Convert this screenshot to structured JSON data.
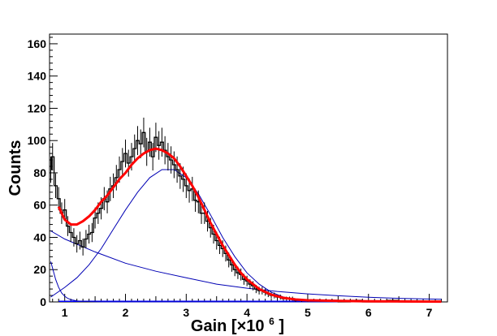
{
  "chart_data": {
    "type": "line",
    "xlabel": "Gain [×10",
    "xlabel_exponent": "6",
    "xlabel_suffix": "]",
    "ylabel": "Counts",
    "xlim": [
      0.75,
      7.3
    ],
    "ylim": [
      0,
      166
    ],
    "xticks": [
      1,
      2,
      3,
      4,
      5,
      6,
      7
    ],
    "yticks": [
      0,
      20,
      40,
      60,
      80,
      100,
      120,
      140,
      160
    ],
    "grid": false,
    "colors": {
      "data": "#000000",
      "total_fit": "#ff0000",
      "components": "#0000b4",
      "baseline": "#0000ff"
    },
    "series": [
      {
        "values_desc": "histogram",
        "x": [
          0.77,
          0.8,
          0.85,
          0.9,
          0.95,
          1.0,
          1.05,
          1.1,
          1.15,
          1.2,
          1.25,
          1.3,
          1.35,
          1.4,
          1.45,
          1.5,
          1.55,
          1.6,
          1.65,
          1.7,
          1.75,
          1.8,
          1.85,
          1.9,
          1.95,
          2.0,
          2.05,
          2.1,
          2.15,
          2.2,
          2.25,
          2.3,
          2.35,
          2.4,
          2.45,
          2.5,
          2.55,
          2.6,
          2.65,
          2.7,
          2.75,
          2.8,
          2.85,
          2.9,
          2.95,
          3.0,
          3.05,
          3.1,
          3.15,
          3.2,
          3.25,
          3.3,
          3.35,
          3.4,
          3.45,
          3.5,
          3.55,
          3.6,
          3.65,
          3.7,
          3.75,
          3.8,
          3.85,
          3.9,
          3.95,
          4.0,
          4.05,
          4.1,
          4.15,
          4.2,
          4.25,
          4.3,
          4.35,
          4.4,
          4.45,
          4.5,
          4.55,
          4.6,
          4.65,
          4.7,
          4.75,
          4.8,
          4.9,
          5.0,
          5.2,
          5.4,
          5.6,
          5.8,
          6.0,
          6.2,
          6.4,
          6.6,
          6.8,
          7.0,
          7.2
        ],
        "y": [
          82,
          90,
          72,
          64,
          55,
          57,
          47,
          43,
          40,
          36,
          38,
          34,
          39,
          42,
          43,
          52,
          55,
          58,
          64,
          62,
          70,
          72,
          77,
          82,
          87,
          92,
          86,
          90,
          95,
          100,
          98,
          105,
          93,
          99,
          90,
          102,
          97,
          99,
          94,
          90,
          88,
          85,
          82,
          78,
          76,
          72,
          69,
          70,
          63,
          62,
          55,
          55,
          50,
          46,
          42,
          38,
          35,
          33,
          30,
          26,
          23,
          20,
          18,
          17,
          14,
          13,
          11,
          10,
          8,
          7,
          7,
          6,
          5,
          4,
          4,
          3,
          3,
          2,
          2,
          2,
          2,
          1,
          1,
          1,
          1,
          1,
          0,
          1,
          0,
          0,
          1,
          0,
          0,
          0,
          0
        ]
      },
      {
        "values_desc": "total fit",
        "x": [
          0.9,
          1.0,
          1.1,
          1.2,
          1.3,
          1.4,
          1.5,
          1.6,
          1.7,
          1.8,
          1.9,
          2.0,
          2.1,
          2.2,
          2.3,
          2.4,
          2.5,
          2.6,
          2.7,
          2.8,
          2.9,
          3.0,
          3.1,
          3.2,
          3.3,
          3.4,
          3.5,
          3.6,
          3.7,
          3.8,
          3.9,
          4.0,
          4.2,
          4.4,
          4.6,
          4.8,
          5.0,
          5.5,
          6.0,
          6.5,
          7.2
        ],
        "y": [
          59,
          51,
          48,
          48,
          50,
          53,
          57,
          62,
          66,
          71,
          76,
          80,
          85,
          89,
          92,
          94,
          95,
          94,
          92,
          89,
          84,
          78,
          72,
          65,
          57,
          49,
          42,
          35,
          29,
          23,
          18,
          14,
          8,
          4.5,
          2.5,
          1.5,
          1,
          0.6,
          0.4,
          0.3,
          0.2
        ]
      },
      {
        "values_desc": "gaussian component",
        "x": [
          0.77,
          1.0,
          1.2,
          1.4,
          1.6,
          1.8,
          2.0,
          2.2,
          2.4,
          2.6,
          2.8,
          3.0,
          3.2,
          3.4,
          3.6,
          3.8,
          4.0,
          4.2,
          4.4,
          4.6,
          4.8,
          5.0,
          5.5,
          6.0,
          6.5,
          7.2
        ],
        "y": [
          3,
          9,
          15,
          23,
          33,
          45,
          57,
          68,
          77,
          82,
          82,
          77,
          67,
          54,
          40,
          28,
          18,
          11,
          6,
          3,
          1.5,
          0.7,
          0.1,
          0,
          0,
          0
        ]
      },
      {
        "values_desc": "exponential component",
        "x": [
          0.77,
          1.0,
          1.5,
          2.0,
          2.5,
          3.0,
          3.5,
          4.0,
          4.5,
          5.0,
          5.5,
          6.0,
          6.5,
          7.2
        ],
        "y": [
          44,
          39,
          31,
          24,
          19,
          15,
          11,
          8.5,
          6.5,
          5,
          3.8,
          2.9,
          2.2,
          1.6
        ]
      },
      {
        "values_desc": "pedestal component",
        "x": [
          0.77,
          0.85,
          0.9,
          0.95,
          1.0,
          1.05,
          1.1,
          1.2,
          1.3,
          1.5,
          1.7,
          2.0,
          7.2
        ],
        "y": [
          25,
          14,
          9,
          5.5,
          3.5,
          2.2,
          1.4,
          0.6,
          0.3,
          0.1,
          0,
          0,
          0
        ]
      }
    ]
  }
}
